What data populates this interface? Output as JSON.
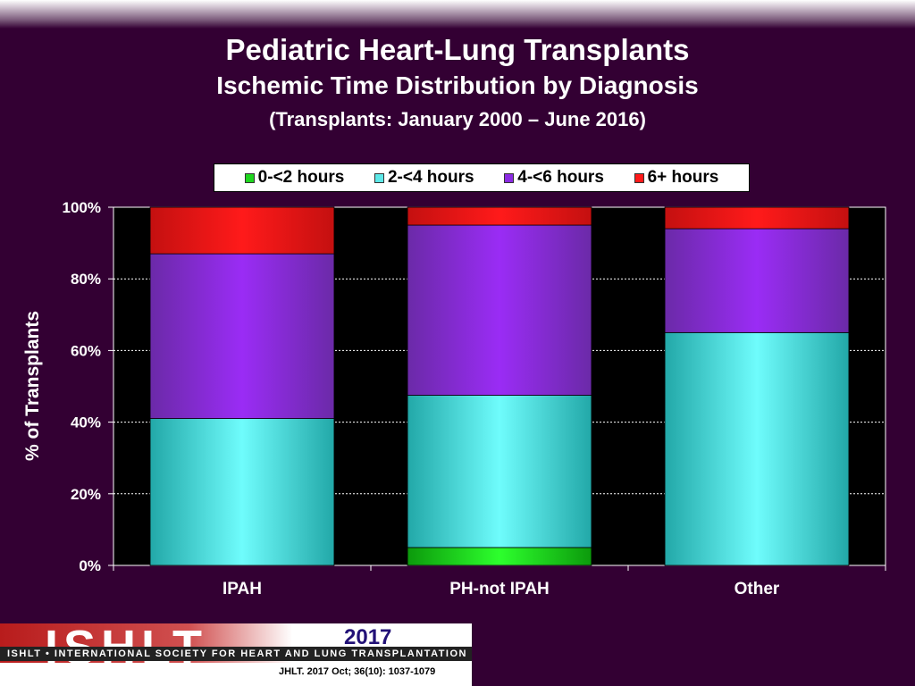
{
  "header": {
    "title": "Pediatric Heart-Lung Transplants",
    "subtitle": "Ischemic Time Distribution by Diagnosis",
    "period": "(Transplants: January 2000 – June 2016)"
  },
  "colors": {
    "background": "#330033",
    "plot_background": "#000000",
    "series": [
      "#1fd61f",
      "#5de8e8",
      "#8b2be2",
      "#ff1a1a"
    ]
  },
  "chart_data": {
    "type": "bar",
    "stacked": true,
    "categories": [
      "IPAH",
      "PH-not IPAH",
      "Other"
    ],
    "series": [
      {
        "name": "0-<2 hours",
        "values": [
          0,
          5,
          0
        ]
      },
      {
        "name": "2-<4 hours",
        "values": [
          41,
          42.5,
          65
        ]
      },
      {
        "name": "4-<6 hours",
        "values": [
          46,
          47.5,
          29
        ]
      },
      {
        "name": "6+ hours",
        "values": [
          13,
          5,
          6
        ]
      }
    ],
    "ylabel": "% of Transplants",
    "ylim": [
      0,
      100
    ],
    "yticks": [
      "0%",
      "20%",
      "40%",
      "60%",
      "80%",
      "100%"
    ],
    "grid": true,
    "legend_position": "top"
  },
  "footer": {
    "logo_word": "ISHLT",
    "logo_tagline": "ISHLT • INTERNATIONAL SOCIETY FOR HEART AND LUNG TRANSPLANTATION",
    "year": "2017",
    "citation": "JHLT. 2017 Oct; 36(10): 1037-1079"
  }
}
